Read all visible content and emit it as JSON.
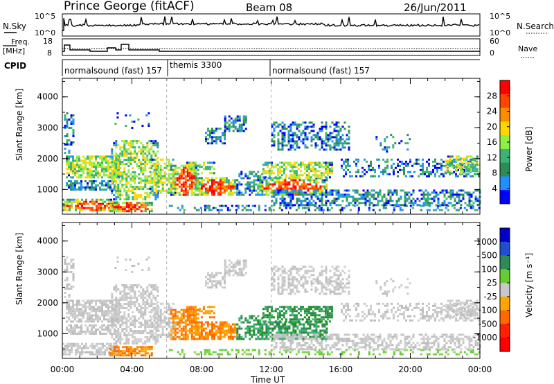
{
  "header": {
    "station": "Prince George (fitACF)",
    "beam": "Beam 08",
    "date": "26/Jun/2011"
  },
  "top_panels": {
    "nsky_label": "N.Sky",
    "nsky_ticks": [
      "10^5",
      "10^0"
    ],
    "nsearch_label": "N.Search",
    "nsearch_ticks": [
      "10^5",
      "10^0"
    ],
    "freq_label": "Freq.",
    "freq_unit": "[MHz]",
    "freq_ticks": [
      "18",
      "8"
    ],
    "nave_label": "Nave",
    "nave_ticks": [
      "60",
      "0"
    ],
    "cpid_label": "CPID",
    "cpid_segments": [
      {
        "label": "normalsound (fast) 157",
        "start_h": 0,
        "end_h": 6
      },
      {
        "label": "themis 3300",
        "start_h": 6,
        "end_h": 12
      },
      {
        "label": "normalsound (fast) 157",
        "start_h": 12,
        "end_h": 24
      }
    ]
  },
  "chart_data": [
    {
      "type": "heatmap",
      "panel": "power",
      "ylabel": "Slant Range [km]",
      "xlabel": "Time UT",
      "ylim": [
        200,
        4600
      ],
      "xlim": [
        0,
        24
      ],
      "y_ticks": [
        "1000",
        "2000",
        "3000",
        "4000"
      ],
      "x_ticks": [
        "00:00",
        "04:00",
        "08:00",
        "12:00",
        "16:00",
        "20:00",
        "00:00"
      ],
      "colorbar_label": "Power [dB]",
      "colorbar_ticks": [
        "28",
        "24",
        "20",
        "16",
        "12",
        "8",
        "4"
      ],
      "colorbar_colors": [
        "#ff0000",
        "#ff4500",
        "#ff8c00",
        "#ffd700",
        "#90ee44",
        "#3cb371",
        "#2e8b57",
        "#1e90ff",
        "#0000ff"
      ]
    },
    {
      "type": "heatmap",
      "panel": "velocity",
      "ylabel": "Slant Range [km]",
      "xlabel": "Time UT",
      "ylim": [
        200,
        4600
      ],
      "xlim": [
        0,
        24
      ],
      "y_ticks": [
        "1000",
        "2000",
        "3000",
        "4000"
      ],
      "x_ticks": [
        "00:00",
        "04:00",
        "08:00",
        "12:00",
        "16:00",
        "20:00",
        "00:00"
      ],
      "colorbar_label": "Velocity [m s⁻¹]",
      "colorbar_ticks": [
        "1000",
        "500",
        "100",
        "25",
        "-25",
        "-100",
        "-500",
        "-1000"
      ],
      "colorbar_colors": [
        "#0000cd",
        "#1e4fd0",
        "#2e8b57",
        "#66cc33",
        "#c8c8c8",
        "#ffa500",
        "#ff6a00",
        "#ff2000",
        "#ff0000"
      ]
    }
  ]
}
